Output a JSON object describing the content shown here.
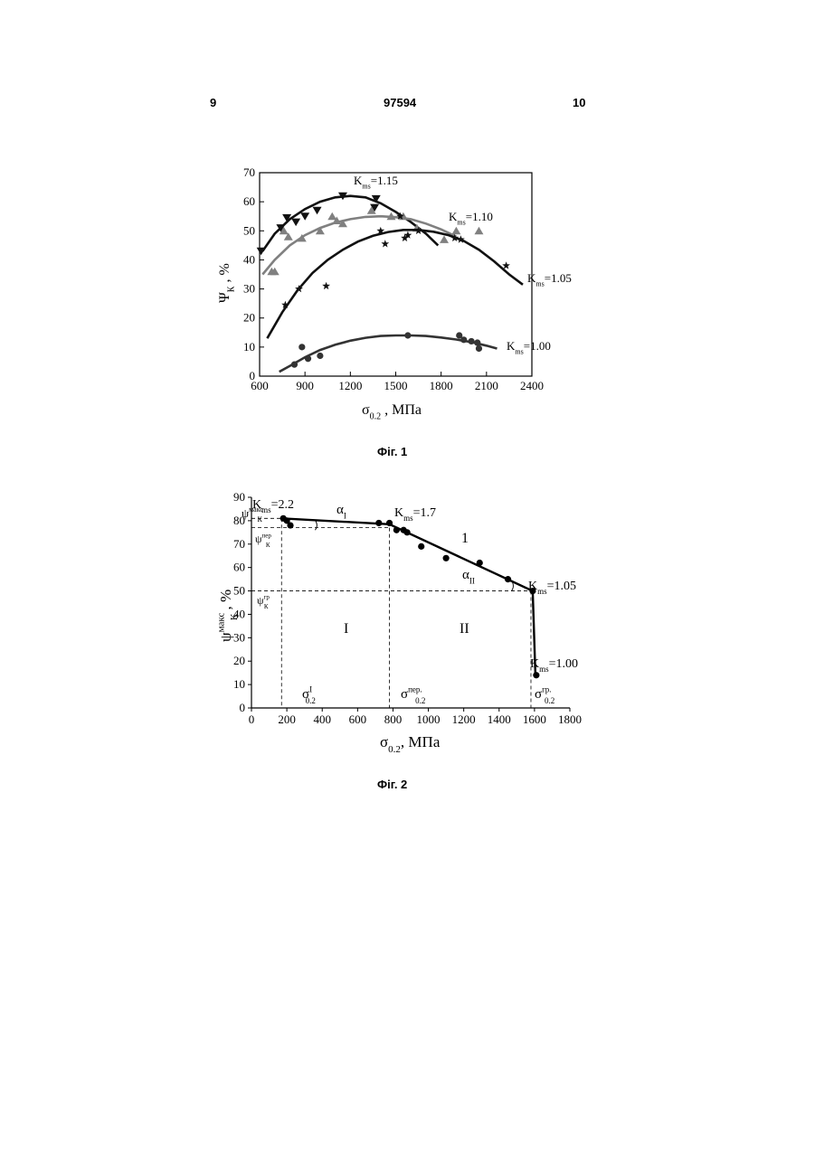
{
  "header": {
    "left": "9",
    "center": "97594",
    "right": "10"
  },
  "figures": {
    "fig1_caption": "Фіг. 1",
    "fig2_caption": "Фіг. 2"
  },
  "chart_data": [
    {
      "type": "scatter",
      "xlabel": {
        "main": "σ",
        "sub": "0.2",
        "tail": " , МПа"
      },
      "ylabel": {
        "main": "Ψ",
        "sub": "К",
        "tail": " ,  %"
      },
      "xlim": [
        600,
        2400
      ],
      "ylim": [
        0,
        70
      ],
      "xticks": [
        600,
        900,
        1200,
        1500,
        1800,
        2100,
        2400
      ],
      "yticks": [
        0,
        10,
        20,
        30,
        40,
        50,
        60,
        70
      ],
      "series": [
        {
          "name": "K ms =1.15",
          "label_main": "K",
          "label_sub": "ms",
          "label_tail": "=1.15",
          "color": "#111111",
          "marker": "triangle-down",
          "points": [
            [
              610,
              43
            ],
            [
              740,
              51
            ],
            [
              780,
              54.5
            ],
            [
              840,
              53
            ],
            [
              900,
              55
            ],
            [
              980,
              57
            ],
            [
              1150,
              62
            ],
            [
              1360,
              58
            ],
            [
              1370,
              61
            ]
          ],
          "curve": [
            [
              620,
              43
            ],
            [
              700,
              49
            ],
            [
              800,
              54
            ],
            [
              900,
              57.5
            ],
            [
              1000,
              60
            ],
            [
              1100,
              61.5
            ],
            [
              1200,
              62
            ],
            [
              1300,
              61.5
            ],
            [
              1400,
              59.5
            ],
            [
              1500,
              56.5
            ],
            [
              1600,
              53
            ],
            [
              1700,
              49
            ],
            [
              1780,
              45
            ]
          ]
        },
        {
          "name": "K ms =1.10",
          "label_main": "K",
          "label_sub": "ms",
          "label_tail": "=1.10",
          "color": "#808080",
          "marker": "triangle-up",
          "points": [
            [
              680,
              36
            ],
            [
              700,
              36
            ],
            [
              760,
              50
            ],
            [
              790,
              48
            ],
            [
              880,
              47.5
            ],
            [
              1000,
              50
            ],
            [
              1080,
              55
            ],
            [
              1110,
              53.5
            ],
            [
              1150,
              52.5
            ],
            [
              1340,
              57
            ],
            [
              1470,
              55
            ],
            [
              1550,
              55
            ],
            [
              1640,
              51
            ],
            [
              1820,
              47
            ],
            [
              1900,
              50
            ],
            [
              2050,
              50
            ]
          ],
          "curve": [
            [
              620,
              35
            ],
            [
              700,
              40
            ],
            [
              800,
              45
            ],
            [
              900,
              48.5
            ],
            [
              1000,
              51
            ],
            [
              1100,
              52.8
            ],
            [
              1200,
              54
            ],
            [
              1300,
              54.8
            ],
            [
              1400,
              55
            ],
            [
              1500,
              54.7
            ],
            [
              1600,
              54
            ],
            [
              1700,
              52.5
            ],
            [
              1800,
              50.5
            ],
            [
              1900,
              48
            ]
          ]
        },
        {
          "name": "K ms =1.05",
          "label_main": "K",
          "label_sub": "ms",
          "label_tail": "=1.05",
          "color": "#111111",
          "marker": "star",
          "points": [
            [
              770,
              24.5
            ],
            [
              860,
              30
            ],
            [
              1040,
              31
            ],
            [
              1400,
              50
            ],
            [
              1430,
              45.5
            ],
            [
              1530,
              55
            ],
            [
              1560,
              47.5
            ],
            [
              1580,
              48.5
            ],
            [
              1650,
              50
            ],
            [
              1890,
              47.5
            ],
            [
              1930,
              47
            ],
            [
              2230,
              38
            ]
          ],
          "curve": [
            [
              650,
              13
            ],
            [
              750,
              22
            ],
            [
              850,
              29.5
            ],
            [
              950,
              35.5
            ],
            [
              1050,
              40
            ],
            [
              1150,
              43.5
            ],
            [
              1250,
              46.3
            ],
            [
              1350,
              48.3
            ],
            [
              1450,
              49.6
            ],
            [
              1550,
              50.3
            ],
            [
              1650,
              50.3
            ],
            [
              1750,
              49.7
            ],
            [
              1850,
              48.5
            ],
            [
              1950,
              46.5
            ],
            [
              2050,
              43.5
            ],
            [
              2150,
              39.5
            ],
            [
              2250,
              35
            ],
            [
              2340,
              31.5
            ]
          ]
        },
        {
          "name": "K ms =1.00",
          "label_main": "K",
          "label_sub": "ms",
          "label_tail": "=1.00",
          "color": "#333333",
          "marker": "circle",
          "points": [
            [
              830,
              4
            ],
            [
              880,
              10
            ],
            [
              920,
              6
            ],
            [
              1000,
              7
            ],
            [
              1580,
              14
            ],
            [
              1920,
              14
            ],
            [
              1950,
              12.5
            ],
            [
              2000,
              12
            ],
            [
              2040,
              11.5
            ],
            [
              2050,
              9.5
            ]
          ],
          "curve": [
            [
              730,
              1.5
            ],
            [
              800,
              3.5
            ],
            [
              900,
              6.5
            ],
            [
              1000,
              9
            ],
            [
              1100,
              10.8
            ],
            [
              1200,
              12.2
            ],
            [
              1300,
              13.2
            ],
            [
              1400,
              13.8
            ],
            [
              1500,
              14
            ],
            [
              1600,
              14
            ],
            [
              1700,
              13.8
            ],
            [
              1800,
              13.3
            ],
            [
              1900,
              12.6
            ],
            [
              2000,
              11.7
            ],
            [
              2100,
              10.5
            ],
            [
              2170,
              9.5
            ]
          ]
        }
      ]
    },
    {
      "type": "line",
      "xlabel": {
        "main": "σ",
        "sub": "0.2",
        "tail": ",  МПа"
      },
      "ylabel": {
        "main": "ψ",
        "sub": "К",
        "sup": "макс",
        "tail": " ,  %"
      },
      "xlim": [
        0,
        1800
      ],
      "ylim": [
        0,
        90
      ],
      "xticks": [
        0,
        200,
        400,
        600,
        800,
        1000,
        1200,
        1400,
        1600,
        1800
      ],
      "yticks": [
        0,
        10,
        20,
        30,
        40,
        50,
        60,
        70,
        80,
        90
      ],
      "points": [
        [
          180,
          81
        ],
        [
          200,
          80
        ],
        [
          220,
          78
        ],
        [
          720,
          79
        ],
        [
          780,
          79
        ],
        [
          820,
          76
        ],
        [
          860,
          76
        ],
        [
          880,
          75
        ],
        [
          960,
          69
        ],
        [
          1100,
          64
        ],
        [
          1290,
          62
        ],
        [
          1450,
          55
        ],
        [
          1590,
          50
        ],
        [
          1610,
          14
        ]
      ],
      "broken_line": [
        [
          170,
          81
        ],
        [
          780,
          78.5
        ],
        [
          1590,
          50
        ],
        [
          1605,
          14
        ]
      ],
      "reference_lines": {
        "psi_max": 81,
        "psi_trans": 77,
        "psi_brittle": 50,
        "sigma_I": 170,
        "sigma_trans": 780,
        "sigma_brittle": 1580
      },
      "annotations": {
        "kms_22": {
          "main": "K",
          "sub": "ms",
          "tail": "=2.2"
        },
        "kms_17": {
          "main": "K",
          "sub": "ms",
          "tail": "=1.7"
        },
        "kms_105": {
          "main": "K",
          "sub": "ms",
          "tail": "=1.05"
        },
        "kms_100": {
          "main": "K",
          "sub": "ms",
          "tail": "=1.00"
        },
        "alpha_I": {
          "main": "α",
          "sub": "I"
        },
        "alpha_II": {
          "main": "α",
          "sub": "II"
        },
        "region_1": "1",
        "region_I": "I",
        "region_II": "II",
        "psi_max_label": {
          "main": "ψ",
          "sub": "К",
          "sup": "макс"
        },
        "psi_trans_label": {
          "main": "ψ",
          "sub": "К",
          "sup": "пер"
        },
        "psi_brittle_label": {
          "main": "ψ",
          "sub": "К",
          "sup": "гр"
        },
        "sigma_I_label": {
          "main": "σ",
          "sup": "I",
          "sub": "0.2"
        },
        "sigma_trans_label": {
          "main": "σ",
          "sup": "пер.",
          "sub": "0.2"
        },
        "sigma_brittle_label": {
          "main": "σ",
          "sup": "гр.",
          "sub": "0.2"
        }
      }
    }
  ]
}
